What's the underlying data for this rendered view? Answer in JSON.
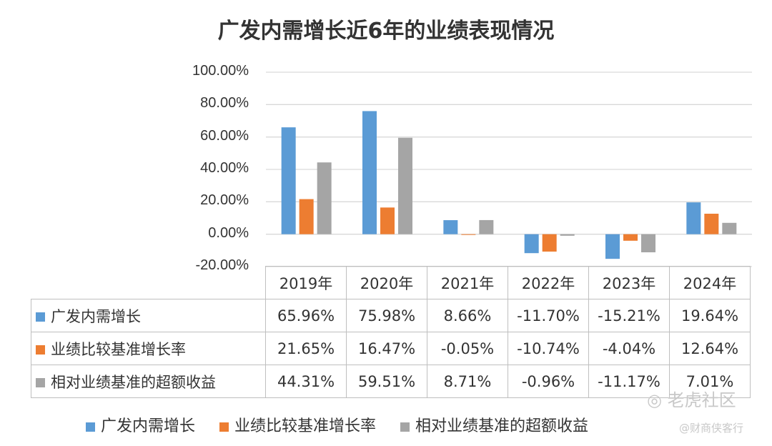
{
  "title": "广发内需增长近6年的业绩表现情况",
  "chart_data": {
    "type": "bar",
    "title": "广发内需增长近6年的业绩表现情况",
    "categories": [
      "2019年",
      "2020年",
      "2021年",
      "2022年",
      "2023年",
      "2024年"
    ],
    "ylim": [
      -20,
      100
    ],
    "yticks": [
      "100.00%",
      "80.00%",
      "60.00%",
      "40.00%",
      "20.00%",
      "0.00%",
      "-20.00%"
    ],
    "grid": true,
    "legend_position": "bottom",
    "series": [
      {
        "name": "广发内需增长",
        "color": "#5B9BD5",
        "values": [
          65.96,
          75.98,
          8.66,
          -11.7,
          -15.21,
          19.64
        ],
        "labels": [
          "65.96%",
          "75.98%",
          "8.66%",
          "-11.70%",
          "-15.21%",
          "19.64%"
        ]
      },
      {
        "name": "业绩比较基准增长率",
        "color": "#ED7D31",
        "values": [
          21.65,
          16.47,
          -0.05,
          -10.74,
          -4.04,
          12.64
        ],
        "labels": [
          "21.65%",
          "16.47%",
          "-0.05%",
          "-10.74%",
          "-4.04%",
          "12.64%"
        ]
      },
      {
        "name": "相对业绩基准的超额收益",
        "color": "#A5A5A5",
        "values": [
          44.31,
          59.51,
          8.71,
          -0.96,
          -11.17,
          7.01
        ],
        "labels": [
          "44.31%",
          "59.51%",
          "8.71%",
          "-0.96%",
          "-11.17%",
          "7.01%"
        ]
      }
    ]
  },
  "watermark": {
    "brand": "老虎社区",
    "author": "@财商侠客行"
  }
}
